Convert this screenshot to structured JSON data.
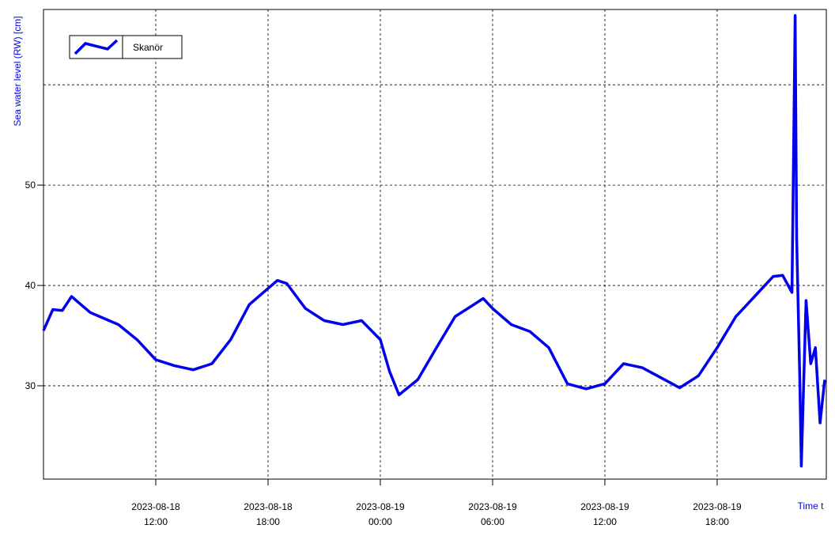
{
  "chart_data": {
    "type": "line",
    "y_label": "Sea water level (RW) [cm]",
    "x_label": "Time t",
    "xlim": [
      "2023-08-18T06:00",
      "2023-08-19T23:50"
    ],
    "ylim": [
      20.7,
      67.5
    ],
    "xticks": [
      {
        "value": "2023-08-18T12:00",
        "label": [
          "2023-08-18",
          "12:00"
        ]
      },
      {
        "value": "2023-08-18T18:00",
        "label": [
          "2023-08-18",
          "18:00"
        ]
      },
      {
        "value": "2023-08-19T00:00",
        "label": [
          "2023-08-19",
          "00:00"
        ]
      },
      {
        "value": "2023-08-19T06:00",
        "label": [
          "2023-08-19",
          "06:00"
        ]
      },
      {
        "value": "2023-08-19T12:00",
        "label": [
          "2023-08-19",
          "12:00"
        ]
      },
      {
        "value": "2023-08-19T18:00",
        "label": [
          "2023-08-19",
          "18:00"
        ]
      }
    ],
    "yticks": [
      30,
      40,
      50
    ],
    "y_gridlines": [
      30,
      40,
      50,
      60
    ],
    "grid": true,
    "legend": "top-left",
    "x": [
      "2023-08-18T06:00",
      "2023-08-18T06:30",
      "2023-08-18T07:00",
      "2023-08-18T07:30",
      "2023-08-18T08:00",
      "2023-08-18T08:30",
      "2023-08-18T09:00",
      "2023-08-18T10:00",
      "2023-08-18T11:00",
      "2023-08-18T12:00",
      "2023-08-18T13:00",
      "2023-08-18T14:00",
      "2023-08-18T15:00",
      "2023-08-18T16:00",
      "2023-08-18T17:00",
      "2023-08-18T18:00",
      "2023-08-18T18:30",
      "2023-08-18T19:00",
      "2023-08-18T20:00",
      "2023-08-18T21:00",
      "2023-08-18T22:00",
      "2023-08-18T23:00",
      "2023-08-19T00:00",
      "2023-08-19T00:30",
      "2023-08-19T01:00",
      "2023-08-19T02:00",
      "2023-08-19T03:00",
      "2023-08-19T04:00",
      "2023-08-19T05:00",
      "2023-08-19T05:30",
      "2023-08-19T06:00",
      "2023-08-19T07:00",
      "2023-08-19T08:00",
      "2023-08-19T09:00",
      "2023-08-19T10:00",
      "2023-08-19T11:00",
      "2023-08-19T12:00",
      "2023-08-19T13:00",
      "2023-08-19T14:00",
      "2023-08-19T15:00",
      "2023-08-19T16:00",
      "2023-08-19T17:00",
      "2023-08-19T18:00",
      "2023-08-19T19:00",
      "2023-08-19T20:00",
      "2023-08-19T21:00",
      "2023-08-19T21:30",
      "2023-08-19T22:00",
      "2023-08-19T22:10",
      "2023-08-19T22:15",
      "2023-08-19T22:25",
      "2023-08-19T22:30",
      "2023-08-19T22:45",
      "2023-08-19T23:00",
      "2023-08-19T23:15",
      "2023-08-19T23:30",
      "2023-08-19T23:45"
    ],
    "series": [
      {
        "name": "Skanör",
        "color": "#0000ee",
        "values": [
          35.5,
          37.6,
          37.5,
          38.9,
          38.1,
          37.3,
          36.9,
          36.1,
          34.6,
          32.6,
          32.0,
          31.6,
          32.2,
          34.6,
          38.1,
          39.7,
          40.5,
          40.2,
          37.7,
          36.5,
          36.1,
          36.5,
          34.6,
          31.4,
          29.1,
          30.6,
          33.8,
          36.9,
          38.1,
          38.7,
          37.7,
          36.1,
          35.4,
          33.8,
          30.2,
          29.7,
          30.2,
          32.2,
          31.8,
          30.8,
          29.8,
          31.0,
          33.8,
          36.9,
          38.9,
          40.9,
          41.0,
          39.3,
          66.9,
          44.8,
          30.6,
          22.0,
          38.5,
          32.2,
          33.8,
          26.3,
          30.6
        ]
      }
    ]
  }
}
